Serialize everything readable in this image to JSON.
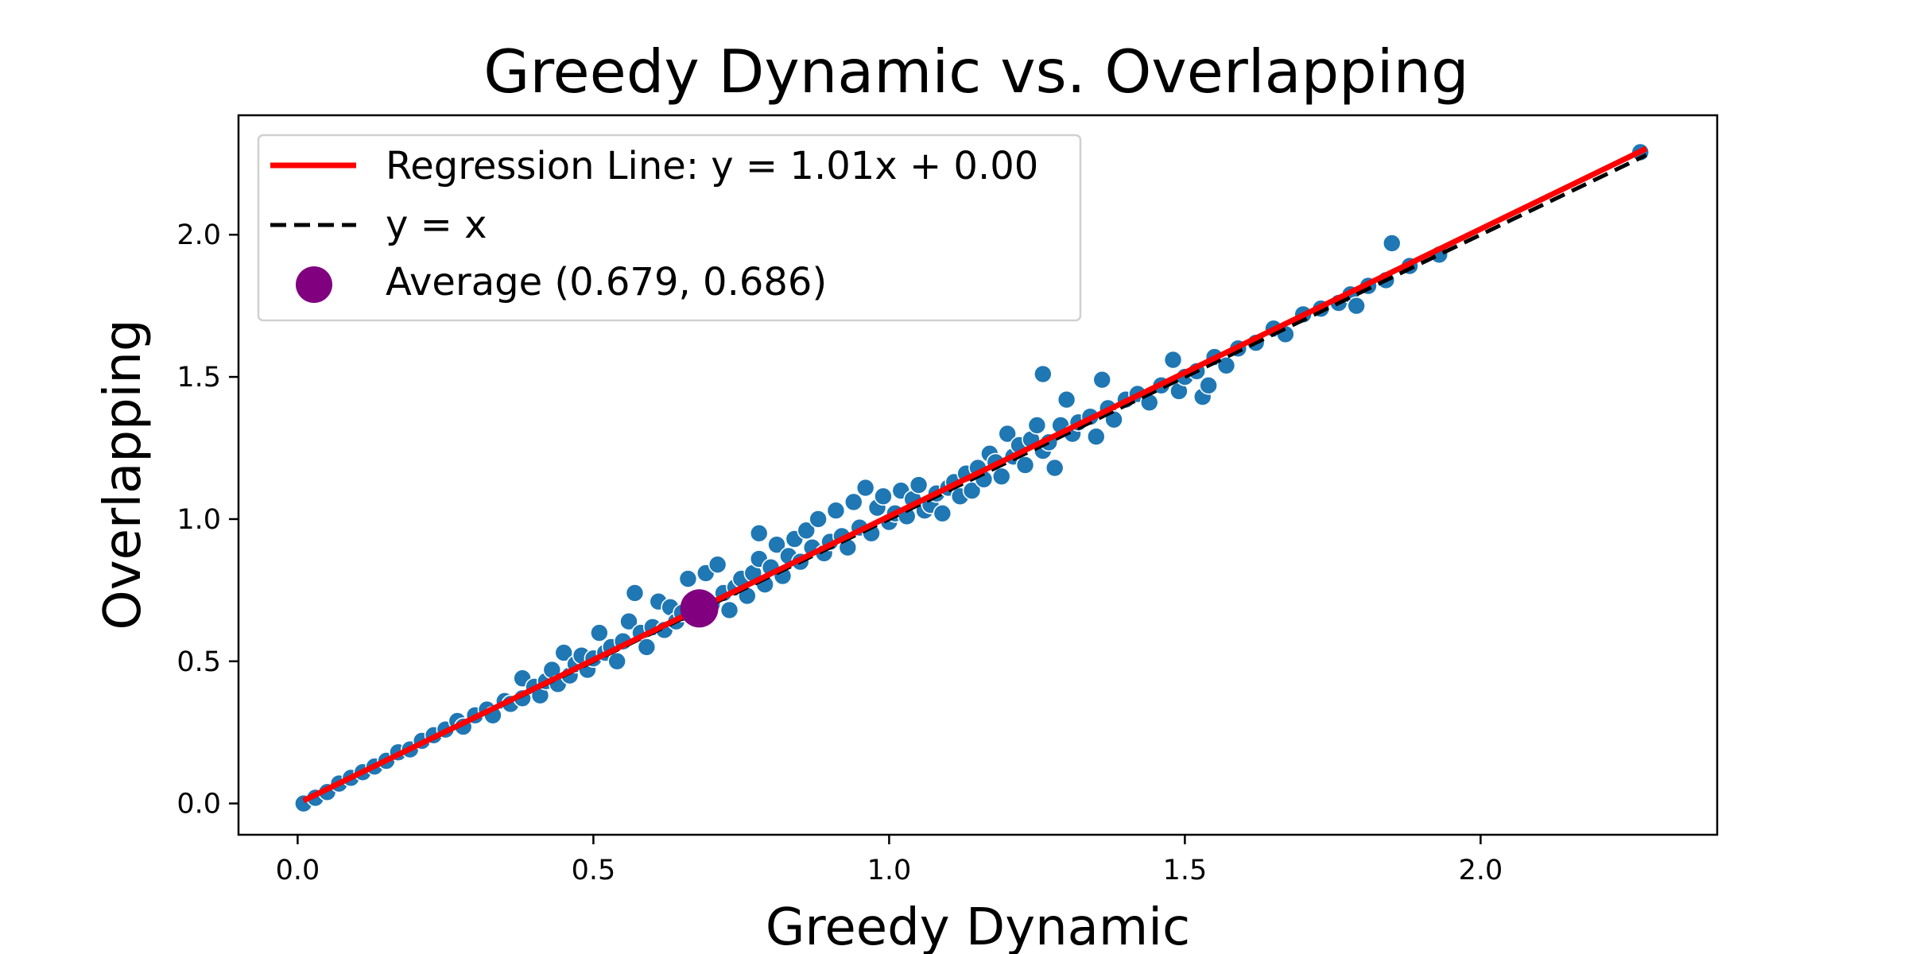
{
  "chart_data": {
    "type": "scatter",
    "title": "Greedy Dynamic vs. Overlapping",
    "xlabel": "Greedy Dynamic",
    "ylabel": "Overlapping",
    "xlim": [
      -0.1,
      2.4
    ],
    "ylim": [
      -0.11,
      2.42
    ],
    "xticks": [
      "0.0",
      "0.5",
      "1.0",
      "1.5",
      "2.0"
    ],
    "yticks": [
      "0.0",
      "0.5",
      "1.0",
      "1.5",
      "2.0"
    ],
    "grid": false,
    "legend_position": "upper-left",
    "colors": {
      "points": "#1f77b4",
      "regression": "#ff0000",
      "identity": "#000000",
      "average": "#800080"
    },
    "regression": {
      "slope": 1.01,
      "intercept": 0.0,
      "label": "Regression Line: y = 1.01x + 0.00"
    },
    "identity_line": {
      "label": "y = x"
    },
    "average": {
      "x": 0.679,
      "y": 0.686,
      "label": "Average (0.679, 0.686)"
    },
    "series": [
      {
        "points": [
          [
            0.01,
            0.0
          ],
          [
            0.03,
            0.02
          ],
          [
            0.05,
            0.04
          ],
          [
            0.07,
            0.07
          ],
          [
            0.09,
            0.09
          ],
          [
            0.11,
            0.11
          ],
          [
            0.13,
            0.13
          ],
          [
            0.15,
            0.15
          ],
          [
            0.17,
            0.18
          ],
          [
            0.19,
            0.19
          ],
          [
            0.21,
            0.22
          ],
          [
            0.23,
            0.24
          ],
          [
            0.25,
            0.26
          ],
          [
            0.27,
            0.29
          ],
          [
            0.28,
            0.27
          ],
          [
            0.3,
            0.31
          ],
          [
            0.32,
            0.33
          ],
          [
            0.33,
            0.31
          ],
          [
            0.35,
            0.36
          ],
          [
            0.36,
            0.35
          ],
          [
            0.38,
            0.37
          ],
          [
            0.38,
            0.44
          ],
          [
            0.4,
            0.41
          ],
          [
            0.41,
            0.38
          ],
          [
            0.42,
            0.43
          ],
          [
            0.43,
            0.47
          ],
          [
            0.44,
            0.42
          ],
          [
            0.45,
            0.53
          ],
          [
            0.46,
            0.45
          ],
          [
            0.47,
            0.49
          ],
          [
            0.48,
            0.52
          ],
          [
            0.49,
            0.47
          ],
          [
            0.5,
            0.51
          ],
          [
            0.51,
            0.6
          ],
          [
            0.52,
            0.53
          ],
          [
            0.53,
            0.55
          ],
          [
            0.54,
            0.5
          ],
          [
            0.55,
            0.57
          ],
          [
            0.56,
            0.64
          ],
          [
            0.57,
            0.74
          ],
          [
            0.58,
            0.6
          ],
          [
            0.59,
            0.55
          ],
          [
            0.6,
            0.62
          ],
          [
            0.61,
            0.71
          ],
          [
            0.62,
            0.61
          ],
          [
            0.63,
            0.69
          ],
          [
            0.64,
            0.64
          ],
          [
            0.65,
            0.67
          ],
          [
            0.66,
            0.79
          ],
          [
            0.67,
            0.66
          ],
          [
            0.68,
            0.72
          ],
          [
            0.69,
            0.81
          ],
          [
            0.7,
            0.7
          ],
          [
            0.71,
            0.84
          ],
          [
            0.72,
            0.74
          ],
          [
            0.73,
            0.68
          ],
          [
            0.74,
            0.76
          ],
          [
            0.75,
            0.79
          ],
          [
            0.76,
            0.73
          ],
          [
            0.77,
            0.81
          ],
          [
            0.78,
            0.86
          ],
          [
            0.78,
            0.95
          ],
          [
            0.79,
            0.77
          ],
          [
            0.8,
            0.83
          ],
          [
            0.81,
            0.91
          ],
          [
            0.82,
            0.8
          ],
          [
            0.83,
            0.87
          ],
          [
            0.84,
            0.93
          ],
          [
            0.85,
            0.85
          ],
          [
            0.86,
            0.96
          ],
          [
            0.87,
            0.9
          ],
          [
            0.88,
            1.0
          ],
          [
            0.89,
            0.88
          ],
          [
            0.9,
            0.92
          ],
          [
            0.91,
            1.03
          ],
          [
            0.92,
            0.94
          ],
          [
            0.93,
            0.9
          ],
          [
            0.94,
            1.06
          ],
          [
            0.95,
            0.97
          ],
          [
            0.96,
            1.11
          ],
          [
            0.97,
            0.95
          ],
          [
            0.98,
            1.04
          ],
          [
            0.99,
            1.08
          ],
          [
            1.0,
            0.99
          ],
          [
            1.01,
            1.02
          ],
          [
            1.02,
            1.1
          ],
          [
            1.03,
            1.01
          ],
          [
            1.04,
            1.07
          ],
          [
            1.05,
            1.12
          ],
          [
            1.06,
            1.03
          ],
          [
            1.07,
            1.05
          ],
          [
            1.08,
            1.09
          ],
          [
            1.09,
            1.02
          ],
          [
            1.1,
            1.11
          ],
          [
            1.11,
            1.13
          ],
          [
            1.12,
            1.08
          ],
          [
            1.13,
            1.16
          ],
          [
            1.14,
            1.1
          ],
          [
            1.15,
            1.18
          ],
          [
            1.16,
            1.14
          ],
          [
            1.17,
            1.23
          ],
          [
            1.18,
            1.2
          ],
          [
            1.19,
            1.15
          ],
          [
            1.2,
            1.3
          ],
          [
            1.21,
            1.22
          ],
          [
            1.22,
            1.26
          ],
          [
            1.23,
            1.19
          ],
          [
            1.24,
            1.28
          ],
          [
            1.25,
            1.33
          ],
          [
            1.26,
            1.24
          ],
          [
            1.26,
            1.51
          ],
          [
            1.27,
            1.27
          ],
          [
            1.28,
            1.18
          ],
          [
            1.29,
            1.33
          ],
          [
            1.3,
            1.42
          ],
          [
            1.31,
            1.3
          ],
          [
            1.32,
            1.34
          ],
          [
            1.34,
            1.36
          ],
          [
            1.35,
            1.29
          ],
          [
            1.36,
            1.49
          ],
          [
            1.37,
            1.39
          ],
          [
            1.38,
            1.35
          ],
          [
            1.4,
            1.42
          ],
          [
            1.42,
            1.44
          ],
          [
            1.44,
            1.41
          ],
          [
            1.46,
            1.47
          ],
          [
            1.48,
            1.56
          ],
          [
            1.49,
            1.45
          ],
          [
            1.5,
            1.5
          ],
          [
            1.52,
            1.52
          ],
          [
            1.53,
            1.43
          ],
          [
            1.54,
            1.47
          ],
          [
            1.55,
            1.57
          ],
          [
            1.57,
            1.54
          ],
          [
            1.59,
            1.6
          ],
          [
            1.62,
            1.62
          ],
          [
            1.65,
            1.67
          ],
          [
            1.67,
            1.65
          ],
          [
            1.7,
            1.72
          ],
          [
            1.73,
            1.74
          ],
          [
            1.76,
            1.76
          ],
          [
            1.78,
            1.79
          ],
          [
            1.79,
            1.75
          ],
          [
            1.81,
            1.82
          ],
          [
            1.84,
            1.84
          ],
          [
            1.85,
            1.97
          ],
          [
            1.88,
            1.89
          ],
          [
            1.93,
            1.93
          ],
          [
            2.27,
            2.29
          ]
        ]
      }
    ]
  }
}
